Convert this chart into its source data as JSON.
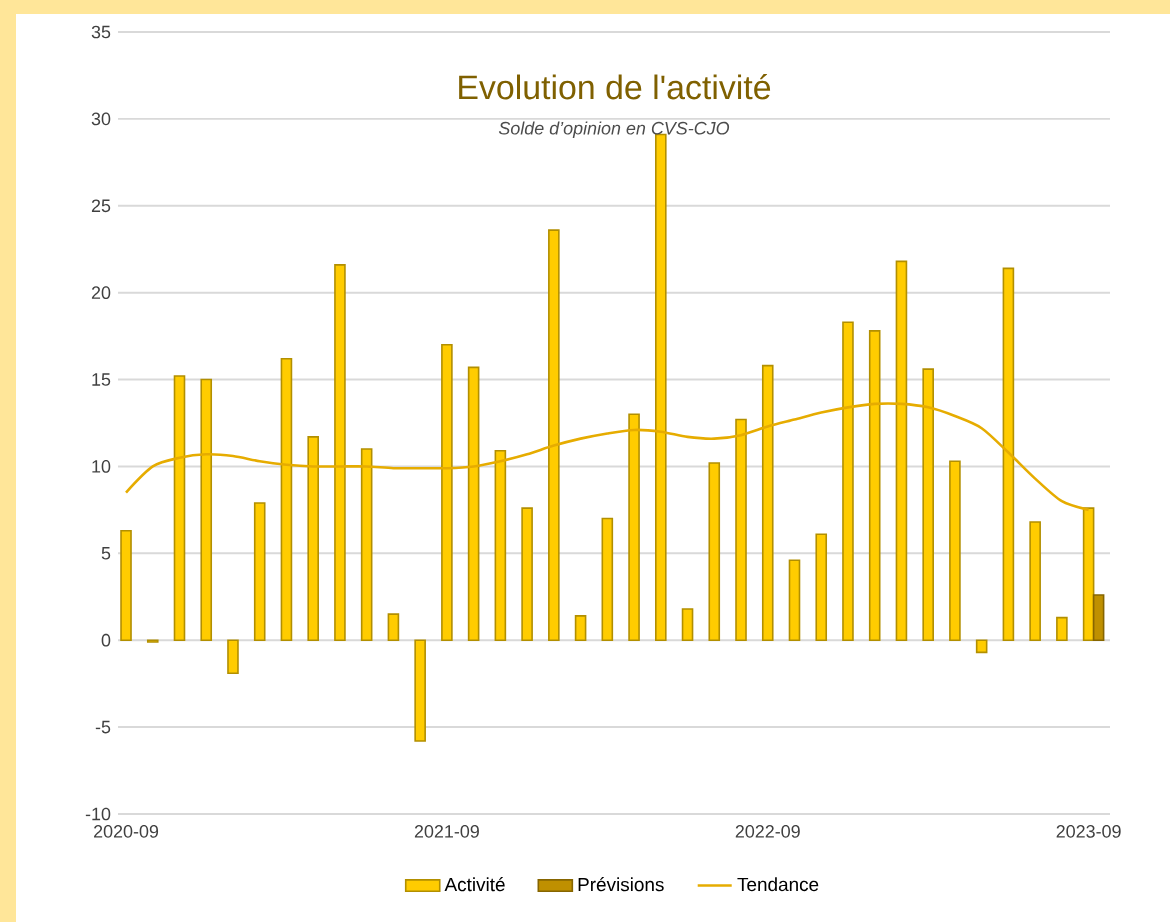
{
  "chart_data": {
    "type": "bar",
    "title": "Evolution de l'activité",
    "subtitle": "Solde d’opinion en CVS-CJO",
    "x": [
      "2020-09",
      "2020-10",
      "2020-11",
      "2020-12",
      "2021-01",
      "2021-02",
      "2021-03",
      "2021-04",
      "2021-05",
      "2021-06",
      "2021-07",
      "2021-08",
      "2021-09",
      "2021-10",
      "2021-11",
      "2021-12",
      "2022-01",
      "2022-02",
      "2022-03",
      "2022-04",
      "2022-05",
      "2022-06",
      "2022-07",
      "2022-08",
      "2022-09",
      "2022-10",
      "2022-11",
      "2022-12",
      "2023-01",
      "2023-02",
      "2023-03",
      "2023-04",
      "2023-05",
      "2023-06",
      "2023-07",
      "2023-08",
      "2023-09"
    ],
    "series": [
      {
        "name": "Activité",
        "color": "#ffcc00",
        "values": [
          6.3,
          -0.1,
          15.2,
          15.0,
          -1.9,
          7.9,
          16.2,
          11.7,
          21.6,
          11.0,
          1.5,
          -5.8,
          17.0,
          15.7,
          10.9,
          7.6,
          23.6,
          1.4,
          7.0,
          13.0,
          29.1,
          1.8,
          10.2,
          12.7,
          15.8,
          4.6,
          6.1,
          18.3,
          17.8,
          21.8,
          15.6,
          10.3,
          -0.7,
          21.4,
          6.8,
          1.3,
          7.6
        ]
      },
      {
        "name": "Prévisions",
        "color": "#bf9000",
        "x": [
          "2023-09"
        ],
        "values": [
          2.6
        ]
      },
      {
        "name": "Tendance",
        "type": "line",
        "color": "#e6ac00",
        "values": [
          8.5,
          10.0,
          10.5,
          10.7,
          10.6,
          10.3,
          10.1,
          10.0,
          10.0,
          10.0,
          9.9,
          9.9,
          9.9,
          10.0,
          10.3,
          10.7,
          11.2,
          11.6,
          11.9,
          12.1,
          12.0,
          11.7,
          11.6,
          11.8,
          12.3,
          12.7,
          13.1,
          13.4,
          13.6,
          13.6,
          13.4,
          12.9,
          12.2,
          10.8,
          9.3,
          8.0,
          7.5
        ]
      }
    ],
    "xlim": [
      "2020-08-22",
      "2023-09-25"
    ],
    "xticks": [
      "2020-09",
      "2021-09",
      "2022-09",
      "2023-09"
    ],
    "ylim": [
      -10,
      35
    ],
    "yticks": [
      -10,
      -5,
      0,
      5,
      10,
      15,
      20,
      25,
      30,
      35
    ],
    "grid": "y",
    "legend": "bottom"
  }
}
